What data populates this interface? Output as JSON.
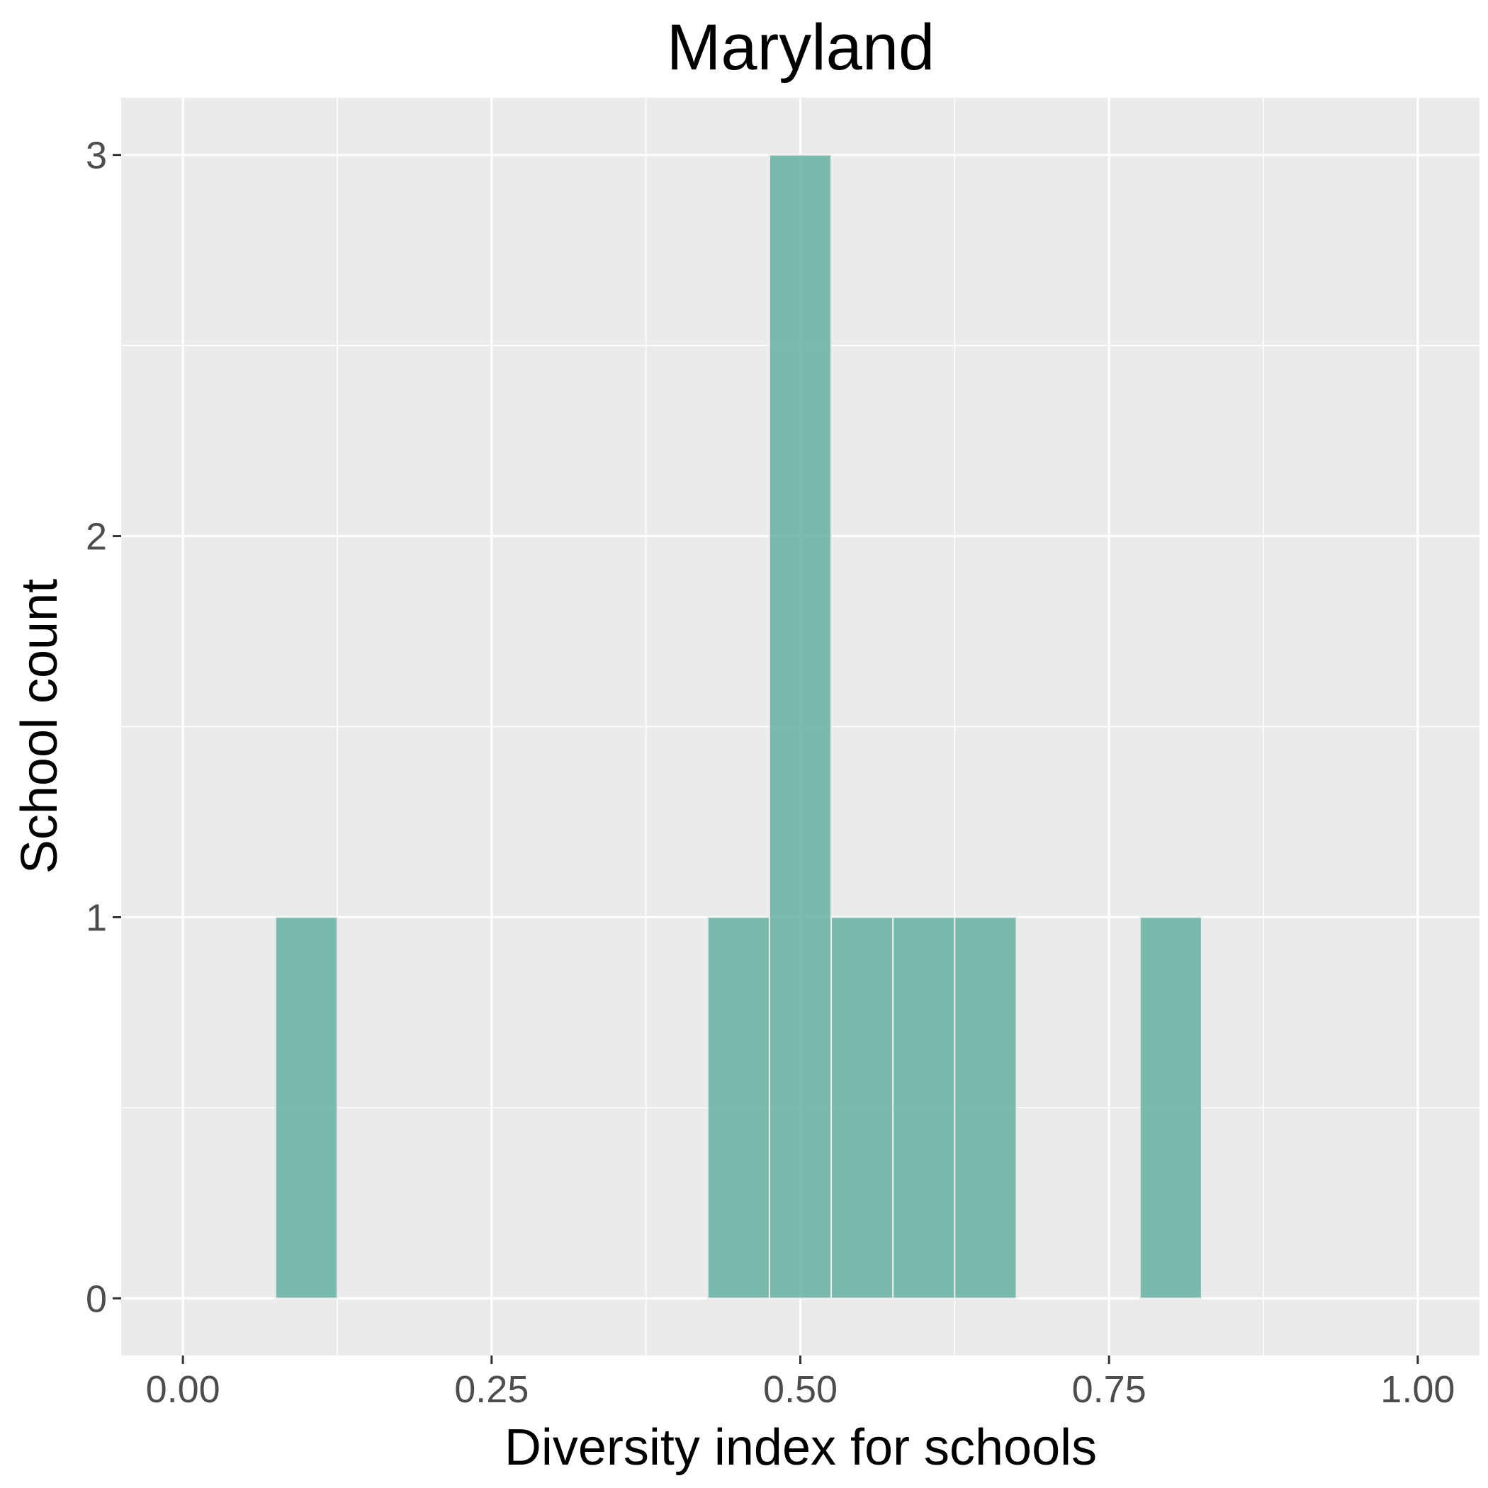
{
  "chart_data": {
    "type": "bar",
    "title": "Maryland",
    "xlabel": "Diversity index for schools",
    "ylabel": "School count",
    "xlim": [
      -0.05,
      1.05
    ],
    "ylim": [
      -0.15,
      3.15
    ],
    "x_ticks": [
      "0.00",
      "0.25",
      "0.50",
      "0.75",
      "1.00"
    ],
    "x_tick_values": [
      0,
      0.25,
      0.5,
      0.75,
      1.0
    ],
    "y_ticks": [
      "0",
      "1",
      "2",
      "3"
    ],
    "y_tick_values": [
      0,
      1,
      2,
      3
    ],
    "bin_width": 0.05,
    "bins": [
      {
        "x": 0.1,
        "count": 1
      },
      {
        "x": 0.45,
        "count": 1
      },
      {
        "x": 0.5,
        "count": 3
      },
      {
        "x": 0.55,
        "count": 1
      },
      {
        "x": 0.6,
        "count": 1
      },
      {
        "x": 0.65,
        "count": 1
      },
      {
        "x": 0.8,
        "count": 1
      }
    ],
    "bar_color": "#66b2a2",
    "panel_background": "#ebebeb",
    "grid": true,
    "legend": "none"
  }
}
